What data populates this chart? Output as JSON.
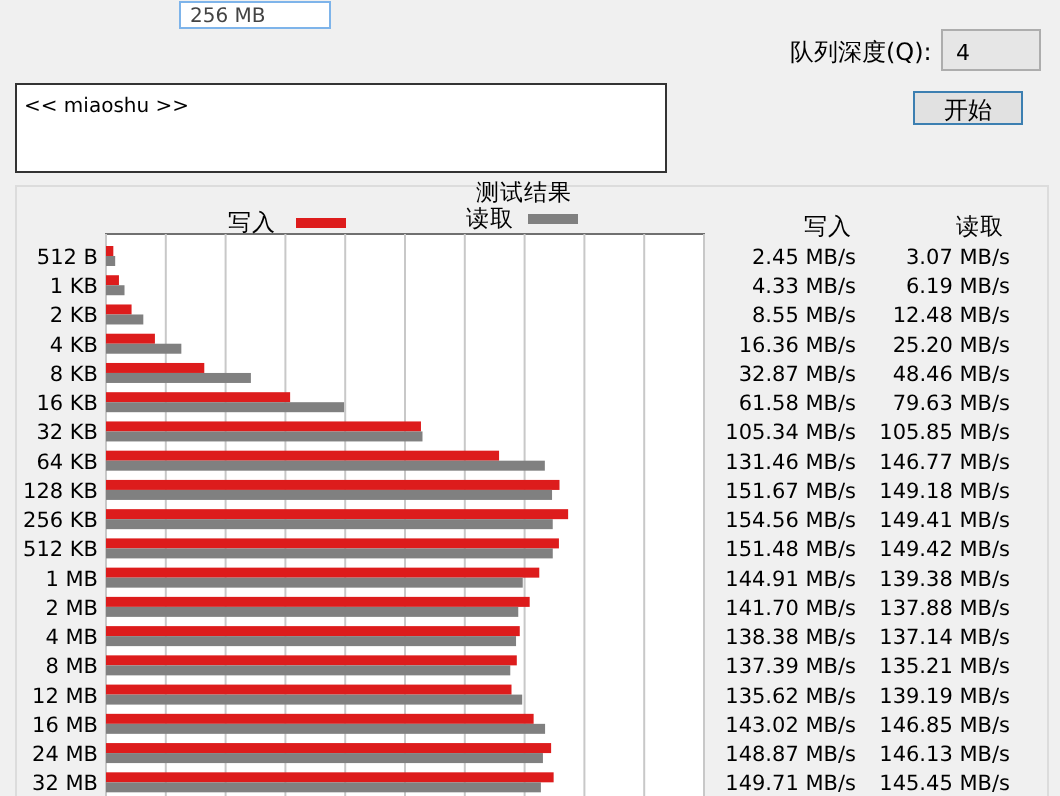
{
  "chart_data": {
    "type": "bar",
    "orientation": "horizontal",
    "legend_title": "测试结果",
    "legend": "top",
    "categories": [
      "512 B",
      "1 KB",
      "2 KB",
      "4 KB",
      "8 KB",
      "16 KB",
      "32 KB",
      "64 KB",
      "128 KB",
      "256 KB",
      "512 KB",
      "1 MB",
      "2 MB",
      "4 MB",
      "8 MB",
      "12 MB",
      "16 MB",
      "24 MB",
      "32 MB"
    ],
    "series": [
      {
        "name": "写入",
        "color": "#dd1c1c",
        "values": [
          2.45,
          4.33,
          8.55,
          16.36,
          32.87,
          61.58,
          105.34,
          131.46,
          151.67,
          154.56,
          151.48,
          144.91,
          141.7,
          138.38,
          137.39,
          135.62,
          143.02,
          148.87,
          149.71
        ],
        "value_labels": [
          "2.45 MB/s",
          "4.33 MB/s",
          "8.55 MB/s",
          "16.36 MB/s",
          "32.87 MB/s",
          "61.58 MB/s",
          "105.34 MB/s",
          "131.46 MB/s",
          "151.67 MB/s",
          "154.56 MB/s",
          "151.48 MB/s",
          "144.91 MB/s",
          "141.70 MB/s",
          "138.38 MB/s",
          "137.39 MB/s",
          "135.62 MB/s",
          "143.02 MB/s",
          "148.87 MB/s",
          "149.71 MB/s"
        ]
      },
      {
        "name": "读取",
        "color": "#808080",
        "values": [
          3.07,
          6.19,
          12.48,
          25.2,
          48.46,
          79.63,
          105.85,
          146.77,
          149.18,
          149.41,
          149.42,
          139.38,
          137.88,
          137.14,
          135.21,
          139.19,
          146.85,
          146.13,
          145.45
        ],
        "value_labels": [
          "3.07 MB/s",
          "6.19 MB/s",
          "12.48 MB/s",
          "25.20 MB/s",
          "48.46 MB/s",
          "79.63 MB/s",
          "105.85 MB/s",
          "146.77 MB/s",
          "149.18 MB/s",
          "149.41 MB/s",
          "149.42 MB/s",
          "139.38 MB/s",
          "137.88 MB/s",
          "137.14 MB/s",
          "135.21 MB/s",
          "139.19 MB/s",
          "146.85 MB/s",
          "146.13 MB/s",
          "145.45 MB/s"
        ]
      }
    ],
    "xlim": [
      0,
      200
    ],
    "xticks": [
      {
        "value": 0,
        "label": null
      },
      {
        "value": 20,
        "label": null
      },
      {
        "value": 40,
        "label": null
      },
      {
        "value": 60,
        "label": null
      },
      {
        "value": 80,
        "label": null
      },
      {
        "value": 100,
        "label": null
      },
      {
        "value": 120,
        "label": null
      },
      {
        "value": 140,
        "label": null
      },
      {
        "value": 160,
        "label": null
      },
      {
        "value": 180,
        "label": null
      },
      {
        "value": 200,
        "label": null
      }
    ],
    "grid": "x",
    "tick_labels": "y",
    "annotations": [
      "256 MB",
      "队列深度(Q):",
      "4",
      "<< miaoshu >>",
      "开始"
    ]
  }
}
